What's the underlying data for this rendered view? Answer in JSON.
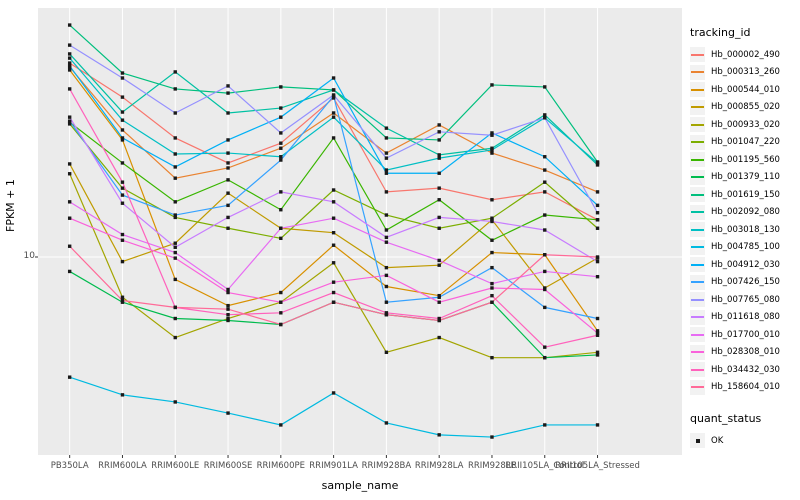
{
  "chart_data": {
    "type": "line",
    "title": "",
    "xlabel": "sample_name",
    "ylabel": "FPKM + 1",
    "y_scale": "log10",
    "y_ticks": [
      {
        "label": "10",
        "value": 10
      }
    ],
    "grid": "major",
    "panel_bg": "#ebebeb",
    "grid_color": "#ffffff",
    "point_color": "#1a1a1a",
    "point_shape": "square",
    "legend_position": "right",
    "categories": [
      "PB350LA",
      "RRIM600LA",
      "RRIM600LE",
      "RRIM600SE",
      "RRIM600PE",
      "RRIM901LA",
      "RRIM928BA",
      "RRIM928LA",
      "RRIM928LE",
      "RRII105LA_Control",
      "RRII105LA_Stressed"
    ],
    "legend_tracking_title": "tracking_id",
    "legend_quant_title": "quant_status",
    "quant_status_items": [
      "OK"
    ],
    "series": [
      {
        "name": "Hb_000002_490",
        "color": "#F8766D",
        "values": [
          55.7,
          41.2,
          28.7,
          23.0,
          27.4,
          40.9,
          17.8,
          18.4,
          16.6,
          17.8,
          13.9
        ]
      },
      {
        "name": "Hb_000313_260",
        "color": "#EA8331",
        "values": [
          53.8,
          30.8,
          20.1,
          22.0,
          26.2,
          35.8,
          25.1,
          32.2,
          25.1,
          21.6,
          17.8
        ]
      },
      {
        "name": "Hb_000544_010",
        "color": "#D89000",
        "values": [
          52.4,
          28.2,
          8.2,
          6.5,
          7.3,
          11.1,
          7.7,
          7.1,
          10.4,
          10.2,
          5.2
        ]
      },
      {
        "name": "Hb_000855_020",
        "color": "#C09B00",
        "values": [
          22.8,
          9.6,
          11.3,
          17.6,
          12.9,
          12.4,
          9.1,
          9.3,
          13.9,
          7.6,
          9.9
        ]
      },
      {
        "name": "Hb_000933_020",
        "color": "#A3A500",
        "values": [
          20.9,
          7.0,
          4.9,
          5.8,
          6.7,
          9.5,
          4.3,
          4.9,
          4.1,
          4.1,
          4.3
        ]
      },
      {
        "name": "Hb_001047_220",
        "color": "#7CAE00",
        "values": [
          32.5,
          18.4,
          14.2,
          12.9,
          11.8,
          18.1,
          14.5,
          12.9,
          14.1,
          19.4,
          12.9
        ]
      },
      {
        "name": "Hb_001195_560",
        "color": "#39B600",
        "values": [
          33.0,
          23.0,
          16.3,
          19.8,
          15.2,
          28.7,
          12.7,
          16.6,
          11.6,
          14.5,
          13.9
        ]
      },
      {
        "name": "Hb_001379_110",
        "color": "#00BB4E",
        "values": [
          8.8,
          6.7,
          5.8,
          5.7,
          5.5,
          6.7,
          6.0,
          5.7,
          6.7,
          4.1,
          4.2
        ]
      },
      {
        "name": "Hb_001619_150",
        "color": "#00BF7D",
        "values": [
          78.0,
          51.0,
          44.3,
          42.7,
          45.1,
          43.9,
          28.7,
          28.2,
          45.9,
          45.1,
          23.2
        ]
      },
      {
        "name": "Hb_002092_080",
        "color": "#00C1A3",
        "values": [
          60.4,
          36.1,
          51.5,
          35.8,
          37.4,
          43.9,
          31.3,
          24.7,
          26.2,
          35.2,
          22.6
        ]
      },
      {
        "name": "Hb_003018_130",
        "color": "#00BFC4",
        "values": [
          58.2,
          33.6,
          24.9,
          25.1,
          24.3,
          34.5,
          21.6,
          24.0,
          25.8,
          34.3,
          23.0
        ]
      },
      {
        "name": "Hb_004785_100",
        "color": "#00BAE0",
        "values": [
          3.45,
          2.95,
          2.77,
          2.51,
          2.26,
          3.0,
          2.3,
          2.07,
          2.03,
          2.26,
          2.26
        ]
      },
      {
        "name": "Hb_004912_030",
        "color": "#00B0F6",
        "values": [
          54.3,
          28.7,
          22.2,
          28.2,
          34.5,
          48.8,
          21.0,
          21.0,
          30.0,
          24.3,
          15.8
        ]
      },
      {
        "name": "Hb_007426_150",
        "color": "#35A2FF",
        "values": [
          33.3,
          17.3,
          14.5,
          15.8,
          23.6,
          41.6,
          6.7,
          7.0,
          9.1,
          6.4,
          5.8
        ]
      },
      {
        "name": "Hb_007765_080",
        "color": "#9590FF",
        "values": [
          65.3,
          48.8,
          35.8,
          45.5,
          30.0,
          42.0,
          24.0,
          30.3,
          29.4,
          34.3,
          14.8
        ]
      },
      {
        "name": "Hb_011618_080",
        "color": "#C77CFF",
        "values": [
          34.5,
          16.1,
          10.9,
          14.2,
          17.8,
          16.3,
          11.9,
          14.2,
          13.7,
          12.7,
          9.6
        ]
      },
      {
        "name": "Hb_017700_010",
        "color": "#E76BF3",
        "values": [
          16.3,
          12.2,
          10.4,
          7.5,
          12.9,
          14.1,
          11.4,
          9.7,
          7.9,
          8.8,
          8.4
        ]
      },
      {
        "name": "Hb_028308_010",
        "color": "#FA62DB",
        "values": [
          14.1,
          11.6,
          9.9,
          7.3,
          6.7,
          8.0,
          8.5,
          6.7,
          7.6,
          7.5,
          5.1
        ]
      },
      {
        "name": "Hb_034432_030",
        "color": "#FF62BC",
        "values": [
          44.3,
          19.4,
          6.4,
          6.0,
          6.1,
          7.3,
          6.1,
          5.8,
          7.1,
          4.5,
          5.0
        ]
      },
      {
        "name": "Hb_158604_010",
        "color": "#FF6A98",
        "values": [
          11.0,
          6.8,
          6.4,
          6.3,
          5.5,
          6.7,
          6.0,
          5.7,
          6.7,
          10.2,
          10.0
        ]
      }
    ]
  }
}
